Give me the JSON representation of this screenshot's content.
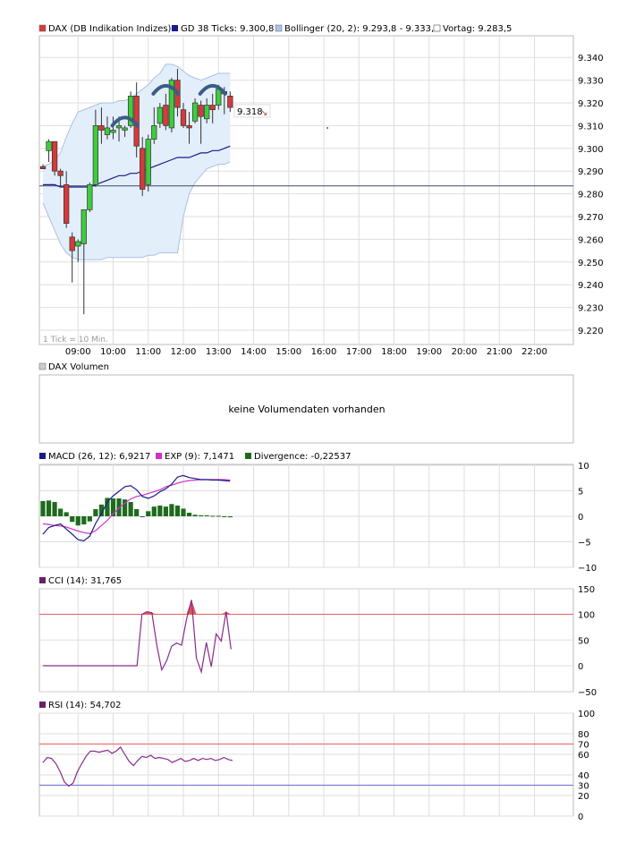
{
  "chart_data": [
    {
      "panel": "price",
      "type": "candlestick",
      "legend": [
        {
          "label": "DAX (DB Indikation Indizes)",
          "color": "#d63a3a"
        },
        {
          "label": "GD 38 Ticks: 9.300,8",
          "color": "#1a1a8c"
        },
        {
          "label": "Bollinger (20, 2): 9.293,8 - 9.333,3",
          "color": "#aac4e6"
        },
        {
          "label": "Vortag: 9.283,5",
          "color": "#ffffff"
        }
      ],
      "y_ticks": [
        "9.340",
        "9.330",
        "9.320",
        "9.310",
        "9.300",
        "9.290",
        "9.280",
        "9.270",
        "9.260",
        "9.250",
        "9.240",
        "9.230",
        "9.220"
      ],
      "ylim": [
        9216,
        9349
      ],
      "x_ticks": [
        "09:00",
        "10:00",
        "11:00",
        "12:00",
        "13:00",
        "14:00",
        "15:00",
        "16:00",
        "17:00",
        "18:00",
        "19:00",
        "20:00",
        "21:00",
        "22:00"
      ],
      "interval_note": "1 Tick = 10 Min.",
      "last_price": "9.318",
      "last_direction": "down",
      "prev_close": 9283.5,
      "candles": [
        {
          "t": "08:00",
          "o": 9292,
          "h": 9293,
          "l": 9291,
          "c": 9291
        },
        {
          "t": "08:10",
          "o": 9299,
          "h": 9304,
          "l": 9294,
          "c": 9303
        },
        {
          "t": "08:20",
          "o": 9303,
          "h": 9303,
          "l": 9288,
          "c": 9290
        },
        {
          "t": "08:30",
          "o": 9290,
          "h": 9291,
          "l": 9283,
          "c": 9288
        },
        {
          "t": "08:40",
          "o": 9284,
          "h": 9290,
          "l": 9265,
          "c": 9267
        },
        {
          "t": "08:50",
          "o": 9261,
          "h": 9263,
          "l": 9241,
          "c": 9255
        },
        {
          "t": "09:00",
          "o": 9257,
          "h": 9260,
          "l": 9250,
          "c": 9259
        },
        {
          "t": "09:10",
          "o": 9258,
          "h": 9272,
          "l": 9227,
          "c": 9273
        },
        {
          "t": "09:20",
          "o": 9273,
          "h": 9285,
          "l": 9272,
          "c": 9284
        },
        {
          "t": "09:30",
          "o": 9284,
          "h": 9317,
          "l": 9283,
          "c": 9310
        },
        {
          "t": "09:40",
          "o": 9310,
          "h": 9318,
          "l": 9302,
          "c": 9308
        },
        {
          "t": "09:50",
          "o": 9306,
          "h": 9314,
          "l": 9304,
          "c": 9309
        },
        {
          "t": "10:00",
          "o": 9307,
          "h": 9314,
          "l": 9304,
          "c": 9308
        },
        {
          "t": "10:10",
          "o": 9309,
          "h": 9314,
          "l": 9303,
          "c": 9310
        },
        {
          "t": "10:20",
          "o": 9308,
          "h": 9310,
          "l": 9305,
          "c": 9309
        },
        {
          "t": "10:30",
          "o": 9310,
          "h": 9325,
          "l": 9309,
          "c": 9323
        },
        {
          "t": "10:40",
          "o": 9323,
          "h": 9329,
          "l": 9296,
          "c": 9301
        },
        {
          "t": "10:50",
          "o": 9300,
          "h": 9305,
          "l": 9279,
          "c": 9282
        },
        {
          "t": "11:00",
          "o": 9284,
          "h": 9306,
          "l": 9281,
          "c": 9304
        },
        {
          "t": "11:10",
          "o": 9304,
          "h": 9318,
          "l": 9302,
          "c": 9310
        },
        {
          "t": "11:20",
          "o": 9311,
          "h": 9320,
          "l": 9309,
          "c": 9318
        },
        {
          "t": "11:30",
          "o": 9319,
          "h": 9324,
          "l": 9308,
          "c": 9310
        },
        {
          "t": "11:40",
          "o": 9309,
          "h": 9331,
          "l": 9307,
          "c": 9330
        },
        {
          "t": "11:50",
          "o": 9330,
          "h": 9335,
          "l": 9314,
          "c": 9318
        },
        {
          "t": "12:00",
          "o": 9317,
          "h": 9320,
          "l": 9309,
          "c": 9310
        },
        {
          "t": "12:10",
          "o": 9310,
          "h": 9316,
          "l": 9302,
          "c": 9309
        },
        {
          "t": "12:20",
          "o": 9312,
          "h": 9322,
          "l": 9311,
          "c": 9320
        },
        {
          "t": "12:30",
          "o": 9319,
          "h": 9321,
          "l": 9302,
          "c": 9314
        },
        {
          "t": "12:40",
          "o": 9313,
          "h": 9322,
          "l": 9311,
          "c": 9319
        },
        {
          "t": "12:50",
          "o": 9319,
          "h": 9324,
          "l": 9311,
          "c": 9317
        },
        {
          "t": "13:00",
          "o": 9319,
          "h": 9328,
          "l": 9317,
          "c": 9326
        },
        {
          "t": "13:10",
          "o": 9325,
          "h": 9327,
          "l": 9315,
          "c": 9324
        },
        {
          "t": "13:20",
          "o": 9323,
          "h": 9325,
          "l": 9316,
          "c": 9318
        }
      ],
      "gd38": [
        9284,
        9284,
        9284,
        9283,
        9283,
        9283,
        9283,
        9283,
        9283,
        9284,
        9285,
        9286,
        9287,
        9288,
        9288,
        9289,
        9289,
        9290,
        9291,
        9292,
        9293,
        9294,
        9295,
        9296,
        9296,
        9296,
        9297,
        9298,
        9298,
        9299,
        9299,
        9300,
        9301
      ],
      "bollinger_upper": [
        9292,
        9293,
        9295,
        9298,
        9305,
        9311,
        9316,
        9317,
        9318,
        9319,
        9320,
        9320,
        9320,
        9321,
        9321,
        9322,
        9324,
        9326,
        9328,
        9331,
        9333,
        9337,
        9337,
        9336,
        9334,
        9332,
        9331,
        9330,
        9331,
        9332,
        9333,
        9333,
        9333
      ],
      "bollinger_lower": [
        9276,
        9270,
        9264,
        9258,
        9254,
        9252,
        9251,
        9251,
        9251,
        9251,
        9251,
        9252,
        9252,
        9252,
        9252,
        9252,
        9252,
        9252,
        9253,
        9253,
        9254,
        9254,
        9254,
        9254,
        9270,
        9280,
        9285,
        9288,
        9291,
        9292,
        9293,
        9293,
        9294
      ],
      "markers_at": [
        "10:20",
        "11:30",
        "12:50"
      ]
    },
    {
      "panel": "volume",
      "type": "bar",
      "legend": [
        {
          "label": "DAX Volumen",
          "color": "#cccccc"
        }
      ],
      "message": "keine Volumendaten vorhanden"
    },
    {
      "panel": "macd",
      "type": "line",
      "legend": [
        {
          "label": "MACD (26, 12): 6,9217",
          "color": "#1a1a8c"
        },
        {
          "label": "EXP (9): 7,1471",
          "color": "#cc33cc"
        },
        {
          "label": "Divergence: -0,22537",
          "color": "#1e6b1e"
        }
      ],
      "y_ticks": [
        "10",
        "5",
        "0",
        "−5",
        "−10"
      ],
      "ylim": [
        -10,
        10
      ],
      "macd": [
        -3.5,
        -2.2,
        -1.8,
        -1.5,
        -2.5,
        -3.5,
        -4.6,
        -4.8,
        -3.9,
        -1.4,
        0.5,
        2.8,
        4.0,
        4.9,
        5.8,
        6.0,
        5.2,
        3.9,
        3.5,
        4.0,
        4.8,
        5.4,
        6.3,
        7.7,
        8.0,
        7.6,
        7.4,
        7.2,
        7.2,
        7.1,
        7.1,
        7.0,
        6.9
      ],
      "exp": [
        -1.5,
        -1.6,
        -1.8,
        -1.9,
        -2.1,
        -2.5,
        -2.9,
        -3.2,
        -3.4,
        -2.8,
        -1.8,
        -0.8,
        0.5,
        1.6,
        2.6,
        3.4,
        3.9,
        4.1,
        4.5,
        4.8,
        5.2,
        5.8,
        6.1,
        6.5,
        6.8,
        7.0,
        7.1,
        7.2,
        7.2,
        7.2,
        7.2,
        7.2,
        7.1
      ],
      "divergence": [
        3.0,
        3.1,
        2.8,
        1.5,
        0.8,
        -1.1,
        -1.8,
        -1.6,
        -1.0,
        1.4,
        2.3,
        3.6,
        3.5,
        3.5,
        3.3,
        2.8,
        1.4,
        -0.1,
        1.0,
        1.9,
        2.1,
        1.9,
        2.4,
        2.1,
        1.5,
        0.7,
        0.3,
        0.2,
        0.2,
        0.1,
        0.1,
        -0.1,
        -0.2
      ]
    },
    {
      "panel": "cci",
      "type": "line",
      "legend": [
        {
          "label": "CCI (14): 31,765",
          "color": "#662266"
        }
      ],
      "y_ticks": [
        "150",
        "100",
        "50",
        "0",
        "−50"
      ],
      "highlight_ticks": [
        "100"
      ],
      "ylim": [
        -50,
        150
      ],
      "threshold": 100,
      "cci": [
        0,
        0,
        0,
        0,
        0,
        0,
        0,
        0,
        0,
        0,
        0,
        0,
        0,
        0,
        0,
        0,
        0,
        0,
        0,
        0,
        100,
        105,
        103,
        40,
        -8,
        10,
        38,
        44,
        40,
        90,
        128,
        15,
        -12,
        45,
        -2,
        62,
        48,
        105,
        32
      ]
    },
    {
      "panel": "rsi",
      "type": "line",
      "legend": [
        {
          "label": "RSI (14): 54,702",
          "color": "#662266"
        }
      ],
      "y_ticks": [
        "100",
        "80",
        "70",
        "60",
        "40",
        "30",
        "20",
        "0"
      ],
      "highlight_ticks": [
        "70",
        "30"
      ],
      "ylim": [
        0,
        100
      ],
      "thresholds": [
        70,
        30
      ],
      "rsi": [
        52,
        57,
        56,
        51,
        43,
        33,
        29,
        32,
        43,
        51,
        58,
        63,
        63,
        62,
        63,
        64,
        61,
        63,
        67,
        60,
        53,
        49,
        54,
        58,
        57,
        59,
        56,
        57,
        56,
        55,
        52,
        54,
        56,
        53,
        54,
        56,
        54,
        56,
        55,
        56,
        54,
        55,
        57,
        55,
        54
      ]
    }
  ]
}
